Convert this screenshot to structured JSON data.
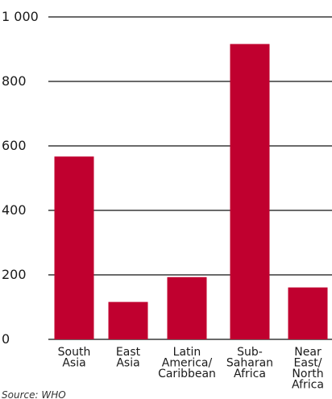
{
  "chart_data": {
    "type": "bar",
    "categories": [
      [
        "South",
        "Asia"
      ],
      [
        "East",
        "Asia"
      ],
      [
        "Latin",
        "America/",
        "Caribbean"
      ],
      [
        "Sub-",
        "Saharan",
        "Africa"
      ],
      [
        "Near",
        "East/",
        "North",
        "Africa"
      ]
    ],
    "values": [
      567,
      116,
      193,
      916,
      161
    ],
    "y_ticks": [
      0,
      200,
      400,
      600,
      800,
      1000
    ],
    "y_tick_labels": [
      "0",
      "200",
      "400",
      "600",
      "800",
      "1 000"
    ],
    "ylim": [
      0,
      1000
    ],
    "grid": true,
    "bar_color": "#c0002f",
    "title": "",
    "xlabel": "",
    "ylabel": ""
  },
  "source": "Source: WHO"
}
